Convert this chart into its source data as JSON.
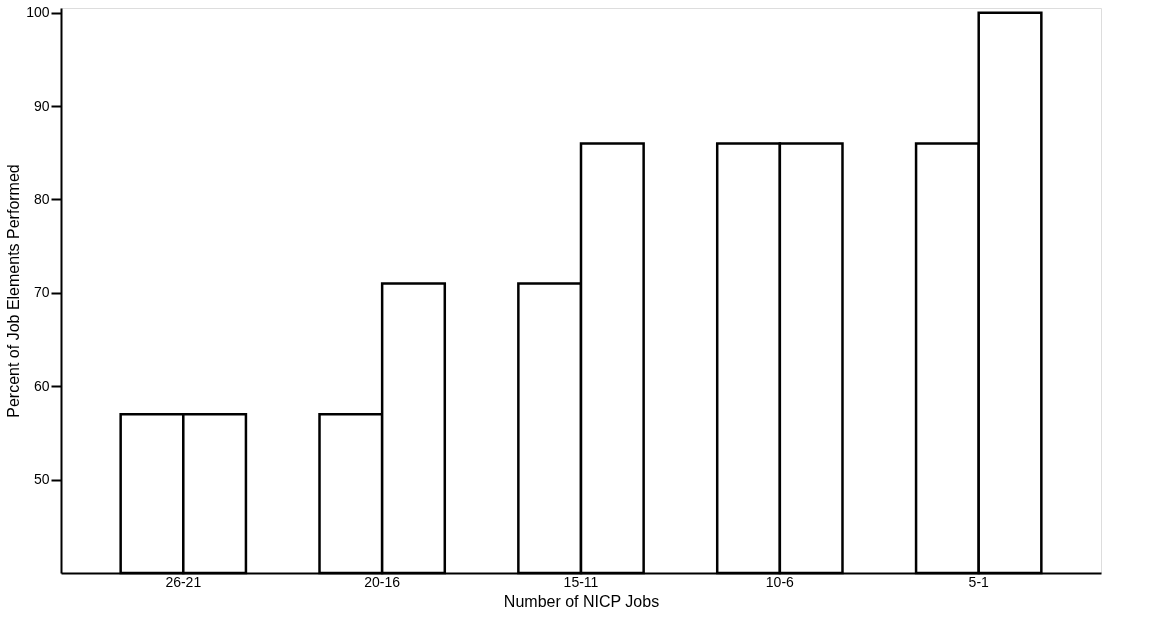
{
  "chart_data": {
    "type": "bar",
    "xlabel": "Number of NICP Jobs",
    "ylabel": "Percent of Job Elements Performed",
    "categories": [
      "26-21",
      "20-16",
      "15-11",
      "10-6",
      "5-1"
    ],
    "series": [
      {
        "color": "#000000",
        "values": [
          57,
          57,
          71,
          86,
          86
        ]
      },
      {
        "color": "#000000",
        "values": [
          57,
          71,
          86,
          86,
          100
        ]
      }
    ],
    "ylim": [
      40,
      100.5
    ],
    "yticks": [
      50,
      60,
      70,
      80,
      90,
      100
    ],
    "grid": false
  }
}
